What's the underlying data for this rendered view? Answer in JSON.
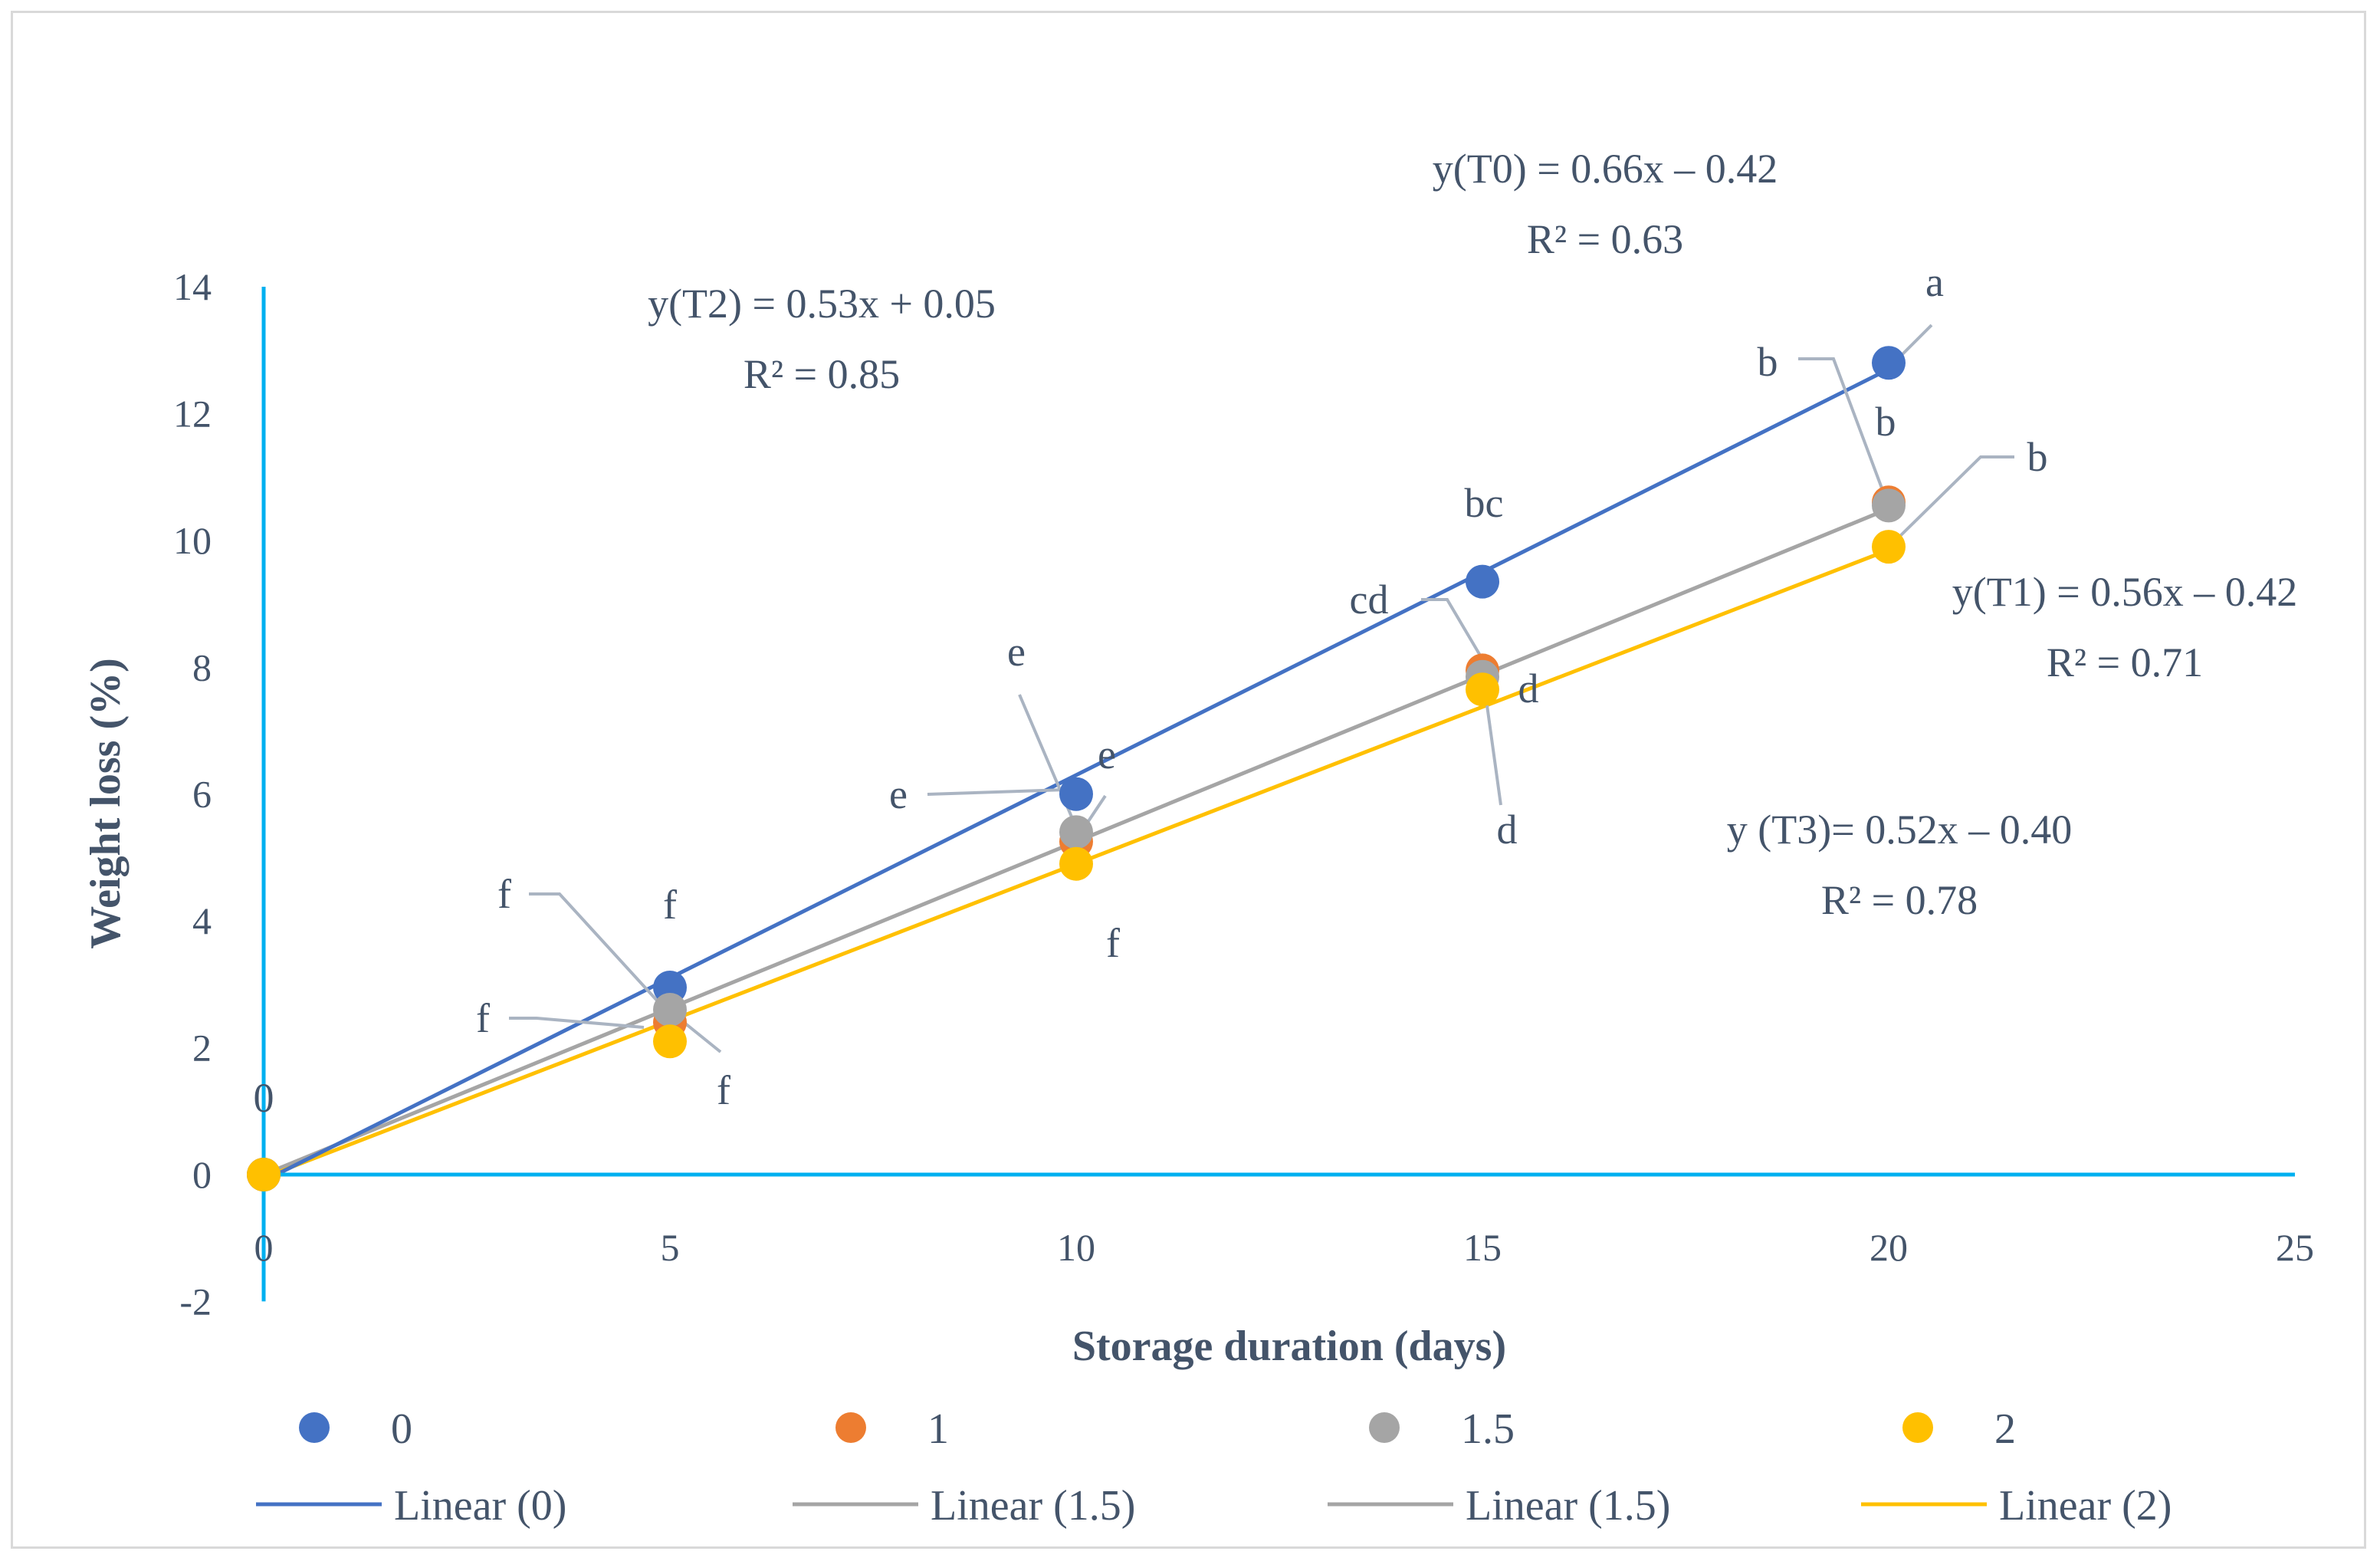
{
  "chart_data": {
    "type": "scatter",
    "xlabel": "Storage duration (days)",
    "ylabel": "Weight loss (%)",
    "xlim": [
      0,
      25
    ],
    "ylim": [
      -2,
      14
    ],
    "x_ticks": [
      "0",
      "5",
      "10",
      "15",
      "20",
      "25"
    ],
    "y_ticks": [
      "-2",
      "0",
      "2",
      "4",
      "6",
      "8",
      "10",
      "12",
      "14"
    ],
    "colors": {
      "axis": "#00b0f0",
      "text": "#44546a",
      "leader": "#aab4c2",
      "s0": "#4472c4",
      "s1": "#ed7d31",
      "s15": "#a5a5a5",
      "s2": "#ffc000"
    },
    "series": [
      {
        "name": "0",
        "color": "#4472c4",
        "x": [
          0,
          5,
          10,
          15,
          20
        ],
        "y": [
          0,
          2.95,
          6.0,
          9.35,
          12.8
        ]
      },
      {
        "name": "1",
        "color": "#ed7d31",
        "x": [
          0,
          5,
          10,
          15,
          20
        ],
        "y": [
          0,
          2.4,
          5.25,
          7.95,
          10.6
        ]
      },
      {
        "name": "1.5",
        "color": "#a5a5a5",
        "x": [
          0,
          5,
          10,
          15,
          20
        ],
        "y": [
          0,
          2.6,
          5.4,
          7.85,
          10.55
        ]
      },
      {
        "name": "2",
        "color": "#ffc000",
        "x": [
          0,
          5,
          10,
          15,
          20
        ],
        "y": [
          0,
          2.1,
          4.9,
          7.65,
          9.9
        ]
      }
    ],
    "trendlines": [
      {
        "label": "Linear (0)",
        "color": "#4472c4",
        "slope": 0.64,
        "intercept": -0.1
      },
      {
        "label": "Linear (1.5)",
        "color": "#a5a5a5",
        "slope": 0.525,
        "intercept": 0.0
      },
      {
        "label": "Linear (1.5)",
        "color": "#a5a5a5",
        "slope": 0.525,
        "intercept": 0.0
      },
      {
        "label": "Linear (2)",
        "color": "#ffc000",
        "slope": 0.495,
        "intercept": -0.05
      }
    ],
    "equations": {
      "t0": {
        "eq": "y(T0) = 0.66x – 0.42",
        "r2": "R² = 0.63"
      },
      "t2": {
        "eq": "y(T2) = 0.53x + 0.05",
        "r2": "R² = 0.85"
      },
      "t1": {
        "eq": "y(T1) = 0.56x – 0.42",
        "r2": "R² = 0.71"
      },
      "t3": {
        "eq": "y (T3)= 0.52x – 0.40",
        "r2": "R² = 0.78"
      }
    },
    "letters": {
      "zero": "0",
      "a20": "a",
      "b20_outer": "b",
      "b20_mid": "b",
      "b20_right": "b",
      "bc15": "bc",
      "cd15": "cd",
      "d15_inner": "d",
      "d15_low": "d",
      "e10_top": "e",
      "e10_left": "e",
      "e10_inner": "e",
      "f10": "f",
      "f5_top": "f",
      "f5_upper_left": "f",
      "f5_lower_left": "f",
      "f5_bottom": "f"
    },
    "legend": {
      "markers": [
        "0",
        "1",
        "1.5",
        "2"
      ],
      "lines": [
        "Linear (0)",
        "Linear (1.5)",
        "Linear (1.5)",
        "Linear (2)"
      ]
    }
  }
}
